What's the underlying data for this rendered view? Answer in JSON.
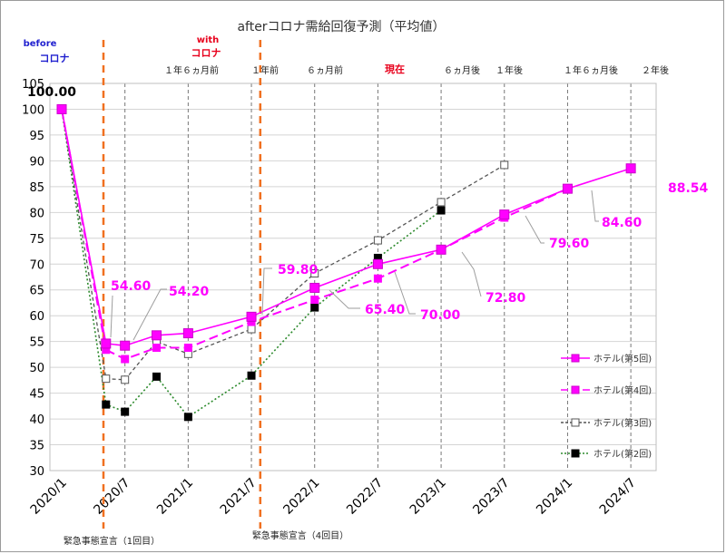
{
  "chart_data": {
    "type": "line",
    "title": "afterコロナ需給回復予測（平均値）",
    "xlabel": "",
    "ylabel": "",
    "ylim": [
      30,
      105
    ],
    "yticks": [
      30,
      35,
      40,
      45,
      50,
      55,
      60,
      65,
      70,
      75,
      80,
      85,
      90,
      95,
      100,
      105
    ],
    "x_categories": [
      "2020/1",
      "2020/7",
      "2021/1",
      "2021/7",
      "2022/1",
      "2022/7",
      "2023/1",
      "2023/7",
      "2024/1",
      "2024/7"
    ],
    "grid": true,
    "legend_position": "right",
    "colors": {
      "series5": "#ff00ff",
      "series4": "#ff00ff",
      "series3": "#555555",
      "series2": "#2e8b2e",
      "marker_black": "#000000",
      "covid_line": "#f07020",
      "before_text": "#1f1fcf",
      "with_text": "#e8001c",
      "current_text": "#e8001c"
    },
    "series": [
      {
        "name": "ホテル(第5回)",
        "style": "solid",
        "marker": "filled-square",
        "points": [
          {
            "x": 0,
            "y": 100.0
          },
          {
            "x": 0.35,
            "y": 54.6
          },
          {
            "x": 0.5,
            "y": 54.2
          },
          {
            "x": 0.75,
            "y": 56.2
          },
          {
            "x": 1.0,
            "y": 56.6
          },
          {
            "x": 1.5,
            "y": 59.8
          },
          {
            "x": 2.0,
            "y": 65.4
          },
          {
            "x": 2.5,
            "y": 70.0
          },
          {
            "x": 3.0,
            "y": 72.8
          },
          {
            "x": 3.5,
            "y": 79.6
          },
          {
            "x": 4.0,
            "y": 84.6
          },
          {
            "x": 4.5,
            "y": 88.54
          }
        ]
      },
      {
        "name": "ホテル(第4回)",
        "style": "dashed",
        "marker": "filled-square",
        "points": [
          {
            "x": 0,
            "y": 100.0
          },
          {
            "x": 0.35,
            "y": 53.4
          },
          {
            "x": 0.5,
            "y": 51.6
          },
          {
            "x": 0.75,
            "y": 53.8
          },
          {
            "x": 1.0,
            "y": 53.8
          },
          {
            "x": 1.5,
            "y": 58.8
          },
          {
            "x": 2.0,
            "y": 63.1
          },
          {
            "x": 2.5,
            "y": 67.2
          },
          {
            "x": 3.0,
            "y": 72.8
          },
          {
            "x": 3.5,
            "y": 79.0
          },
          {
            "x": 4.0,
            "y": 84.6
          }
        ]
      },
      {
        "name": "ホテル(第3回)",
        "style": "dashed",
        "marker": "hollow-square",
        "points": [
          {
            "x": 0,
            "y": 100.0
          },
          {
            "x": 0.35,
            "y": 47.8
          },
          {
            "x": 0.5,
            "y": 47.6
          },
          {
            "x": 0.75,
            "y": 55.0
          },
          {
            "x": 1.0,
            "y": 52.6
          },
          {
            "x": 1.5,
            "y": 57.4
          },
          {
            "x": 2.0,
            "y": 68.2
          },
          {
            "x": 2.5,
            "y": 74.6
          },
          {
            "x": 3.0,
            "y": 82.0
          },
          {
            "x": 3.5,
            "y": 89.2
          }
        ]
      },
      {
        "name": "ホテル(第2回)",
        "style": "dotted",
        "marker": "black-square",
        "points": [
          {
            "x": 0,
            "y": 100.0
          },
          {
            "x": 0.35,
            "y": 42.8
          },
          {
            "x": 0.5,
            "y": 41.4
          },
          {
            "x": 0.75,
            "y": 48.2
          },
          {
            "x": 1.0,
            "y": 40.4
          },
          {
            "x": 1.5,
            "y": 48.4
          },
          {
            "x": 2.0,
            "y": 61.6
          },
          {
            "x": 2.5,
            "y": 71.2
          },
          {
            "x": 3.0,
            "y": 80.4
          }
        ]
      }
    ],
    "data_labels": [
      {
        "text": "100.00",
        "color": "#000000"
      },
      {
        "text": "54.60",
        "color": "#ff00ff"
      },
      {
        "text": "54.20",
        "color": "#ff00ff"
      },
      {
        "text": "59.80",
        "color": "#ff00ff"
      },
      {
        "text": "65.40",
        "color": "#ff00ff"
      },
      {
        "text": "70.00",
        "color": "#ff00ff"
      },
      {
        "text": "72.80",
        "color": "#ff00ff"
      },
      {
        "text": "79.60",
        "color": "#ff00ff"
      },
      {
        "text": "84.60",
        "color": "#ff00ff"
      },
      {
        "text": "88.54",
        "color": "#ff00ff"
      }
    ],
    "top_annotations": [
      {
        "text": "before"
      },
      {
        "text": "コロナ"
      },
      {
        "text": "with"
      },
      {
        "text": "コロナ"
      },
      {
        "text": "１年６ヵ月前"
      },
      {
        "text": "１年前"
      },
      {
        "text": "６ヵ月前"
      },
      {
        "text": "現在"
      },
      {
        "text": "６ヵ月後"
      },
      {
        "text": "１年後"
      },
      {
        "text": "１年６ヵ月後"
      },
      {
        "text": "２年後"
      }
    ],
    "bottom_annotations": [
      {
        "text": "緊急事態宣言（1回目）"
      },
      {
        "text": "緊急事態宣言（4回目）"
      }
    ]
  }
}
